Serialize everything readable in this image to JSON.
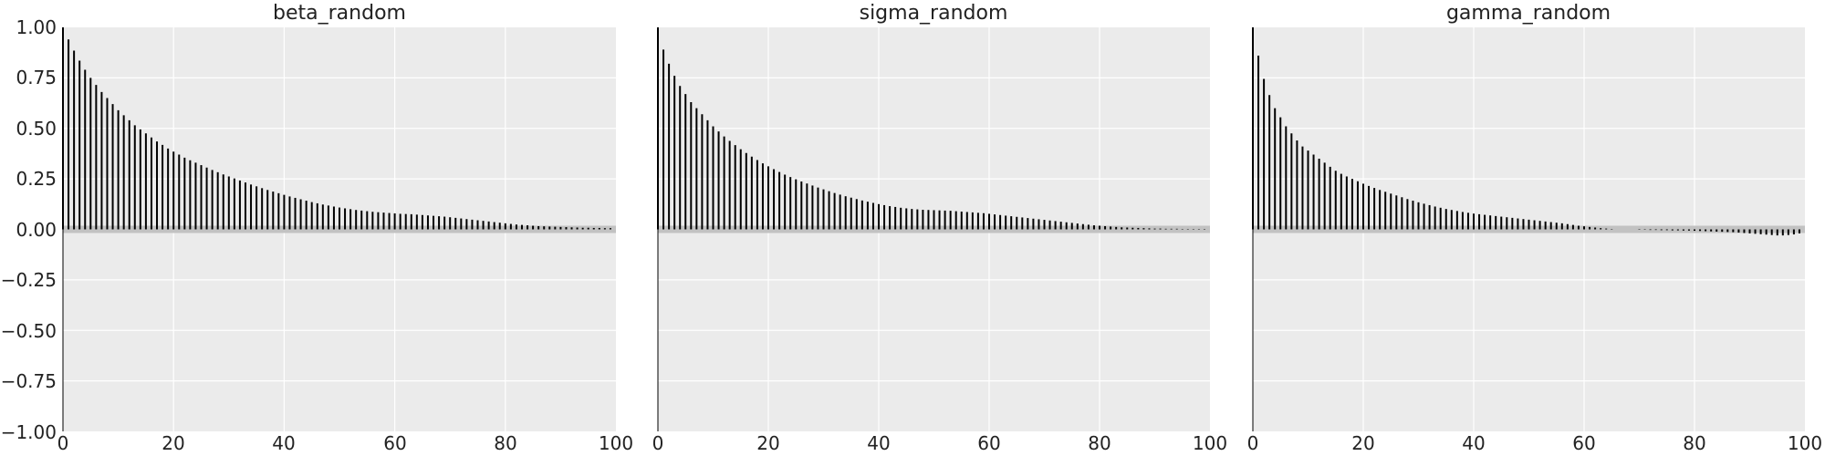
{
  "chart_data": [
    {
      "type": "bar",
      "title": "beta_random",
      "xlabel": "",
      "ylabel": "",
      "xlim": [
        0,
        100
      ],
      "ylim": [
        -1,
        1
      ],
      "grid": true,
      "x_ticks": [
        "0",
        "20",
        "40",
        "60",
        "80",
        "100"
      ],
      "y_ticks": [
        "1.00",
        "0.75",
        "0.50",
        "0.25",
        "0.00",
        "−0.25",
        "−0.50",
        "−0.75",
        "−1.00"
      ],
      "lags": [
        0,
        1,
        2,
        3,
        4,
        5,
        6,
        7,
        8,
        9,
        10,
        11,
        12,
        13,
        14,
        15,
        16,
        17,
        18,
        19,
        20,
        21,
        22,
        23,
        24,
        25,
        26,
        27,
        28,
        29,
        30,
        31,
        32,
        33,
        34,
        35,
        36,
        37,
        38,
        39,
        40,
        41,
        42,
        43,
        44,
        45,
        46,
        47,
        48,
        49,
        50,
        51,
        52,
        53,
        54,
        55,
        56,
        57,
        58,
        59,
        60,
        61,
        62,
        63,
        64,
        65,
        66,
        67,
        68,
        69,
        70,
        71,
        72,
        73,
        74,
        75,
        76,
        77,
        78,
        79,
        80,
        81,
        82,
        83,
        84,
        85,
        86,
        87,
        88,
        89,
        90,
        91,
        92,
        93,
        94,
        95,
        96,
        97,
        98,
        99
      ],
      "values": [
        1.0,
        0.94,
        0.885,
        0.835,
        0.79,
        0.75,
        0.715,
        0.68,
        0.65,
        0.62,
        0.59,
        0.565,
        0.54,
        0.515,
        0.495,
        0.475,
        0.455,
        0.435,
        0.418,
        0.4,
        0.385,
        0.37,
        0.355,
        0.342,
        0.33,
        0.318,
        0.306,
        0.294,
        0.283,
        0.272,
        0.262,
        0.252,
        0.242,
        0.232,
        0.222,
        0.213,
        0.204,
        0.195,
        0.187,
        0.179,
        0.171,
        0.163,
        0.156,
        0.149,
        0.142,
        0.135,
        0.129,
        0.123,
        0.118,
        0.113,
        0.108,
        0.104,
        0.1,
        0.096,
        0.093,
        0.09,
        0.087,
        0.085,
        0.083,
        0.081,
        0.079,
        0.077,
        0.076,
        0.075,
        0.073,
        0.071,
        0.069,
        0.067,
        0.065,
        0.063,
        0.06,
        0.057,
        0.054,
        0.051,
        0.048,
        0.045,
        0.042,
        0.039,
        0.036,
        0.033,
        0.03,
        0.027,
        0.024,
        0.022,
        0.02,
        0.018,
        0.016,
        0.015,
        0.014,
        0.013,
        0.012,
        0.011,
        0.01,
        0.009,
        0.008,
        0.008,
        0.007,
        0.007,
        0.006,
        0.006
      ]
    },
    {
      "type": "bar",
      "title": "sigma_random",
      "xlabel": "",
      "ylabel": "",
      "xlim": [
        0,
        100
      ],
      "ylim": [
        -1,
        1
      ],
      "grid": true,
      "x_ticks": [
        "0",
        "20",
        "40",
        "60",
        "80",
        "100"
      ],
      "lags": [
        0,
        1,
        2,
        3,
        4,
        5,
        6,
        7,
        8,
        9,
        10,
        11,
        12,
        13,
        14,
        15,
        16,
        17,
        18,
        19,
        20,
        21,
        22,
        23,
        24,
        25,
        26,
        27,
        28,
        29,
        30,
        31,
        32,
        33,
        34,
        35,
        36,
        37,
        38,
        39,
        40,
        41,
        42,
        43,
        44,
        45,
        46,
        47,
        48,
        49,
        50,
        51,
        52,
        53,
        54,
        55,
        56,
        57,
        58,
        59,
        60,
        61,
        62,
        63,
        64,
        65,
        66,
        67,
        68,
        69,
        70,
        71,
        72,
        73,
        74,
        75,
        76,
        77,
        78,
        79,
        80,
        81,
        82,
        83,
        84,
        85,
        86,
        87,
        88,
        89,
        90,
        91,
        92,
        93,
        94,
        95,
        96,
        97,
        98,
        99
      ],
      "values": [
        1.0,
        0.89,
        0.82,
        0.76,
        0.71,
        0.67,
        0.63,
        0.6,
        0.57,
        0.54,
        0.51,
        0.485,
        0.46,
        0.438,
        0.417,
        0.397,
        0.378,
        0.36,
        0.343,
        0.327,
        0.312,
        0.298,
        0.284,
        0.271,
        0.259,
        0.248,
        0.237,
        0.227,
        0.217,
        0.207,
        0.198,
        0.189,
        0.18,
        0.172,
        0.164,
        0.157,
        0.15,
        0.143,
        0.137,
        0.131,
        0.125,
        0.12,
        0.115,
        0.111,
        0.107,
        0.104,
        0.101,
        0.099,
        0.097,
        0.096,
        0.095,
        0.094,
        0.093,
        0.092,
        0.09,
        0.088,
        0.086,
        0.084,
        0.082,
        0.08,
        0.077,
        0.074,
        0.071,
        0.068,
        0.065,
        0.062,
        0.059,
        0.056,
        0.053,
        0.05,
        0.047,
        0.044,
        0.041,
        0.038,
        0.035,
        0.032,
        0.029,
        0.026,
        0.023,
        0.02,
        0.018,
        0.016,
        0.014,
        0.012,
        0.01,
        0.009,
        0.008,
        0.007,
        0.006,
        0.005,
        0.004,
        0.004,
        0.003,
        0.003,
        0.003,
        0.002,
        0.002,
        0.002,
        0.002,
        0.002
      ]
    },
    {
      "type": "bar",
      "title": "gamma_random",
      "xlabel": "",
      "ylabel": "",
      "xlim": [
        0,
        100
      ],
      "ylim": [
        -1,
        1
      ],
      "grid": true,
      "x_ticks": [
        "0",
        "20",
        "40",
        "60",
        "80",
        "100"
      ],
      "lags": [
        0,
        1,
        2,
        3,
        4,
        5,
        6,
        7,
        8,
        9,
        10,
        11,
        12,
        13,
        14,
        15,
        16,
        17,
        18,
        19,
        20,
        21,
        22,
        23,
        24,
        25,
        26,
        27,
        28,
        29,
        30,
        31,
        32,
        33,
        34,
        35,
        36,
        37,
        38,
        39,
        40,
        41,
        42,
        43,
        44,
        45,
        46,
        47,
        48,
        49,
        50,
        51,
        52,
        53,
        54,
        55,
        56,
        57,
        58,
        59,
        60,
        61,
        62,
        63,
        64,
        65,
        66,
        67,
        68,
        69,
        70,
        71,
        72,
        73,
        74,
        75,
        76,
        77,
        78,
        79,
        80,
        81,
        82,
        83,
        84,
        85,
        86,
        87,
        88,
        89,
        90,
        91,
        92,
        93,
        94,
        95,
        96,
        97,
        98,
        99
      ],
      "values": [
        1.0,
        0.86,
        0.745,
        0.665,
        0.6,
        0.555,
        0.51,
        0.475,
        0.44,
        0.41,
        0.39,
        0.37,
        0.35,
        0.33,
        0.31,
        0.29,
        0.275,
        0.262,
        0.25,
        0.238,
        0.226,
        0.215,
        0.205,
        0.195,
        0.186,
        0.177,
        0.168,
        0.159,
        0.15,
        0.142,
        0.134,
        0.127,
        0.12,
        0.113,
        0.107,
        0.101,
        0.096,
        0.091,
        0.086,
        0.082,
        0.078,
        0.075,
        0.072,
        0.069,
        0.066,
        0.063,
        0.06,
        0.057,
        0.054,
        0.051,
        0.048,
        0.045,
        0.042,
        0.039,
        0.036,
        0.033,
        0.03,
        0.026,
        0.022,
        0.018,
        0.015,
        0.012,
        0.009,
        0.006,
        0.004,
        0.002,
        0.001,
        0.0,
        -0.001,
        -0.001,
        -0.002,
        -0.002,
        -0.003,
        -0.003,
        -0.004,
        -0.004,
        -0.005,
        -0.005,
        -0.006,
        -0.006,
        -0.007,
        -0.008,
        -0.009,
        -0.01,
        -0.011,
        -0.012,
        -0.013,
        -0.014,
        -0.016,
        -0.018,
        -0.02,
        -0.022,
        -0.024,
        -0.026,
        -0.028,
        -0.03,
        -0.03,
        -0.028,
        -0.025,
        -0.02
      ]
    }
  ]
}
